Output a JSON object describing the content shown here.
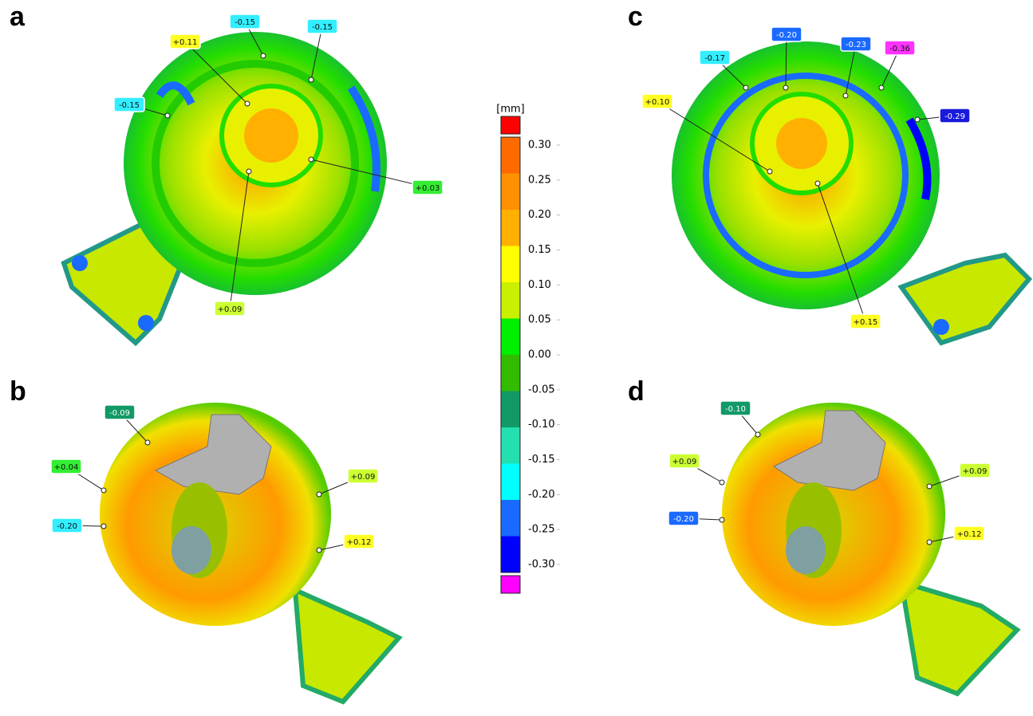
{
  "panels": [
    {
      "letter": "a",
      "callouts": [
        {
          "text": "-0.15",
          "color": "#33eeff"
        },
        {
          "text": "-0.15",
          "color": "#33eeff"
        },
        {
          "text": "+0.11",
          "color": "#ffff22"
        },
        {
          "text": "-0.15",
          "color": "#33eeff"
        },
        {
          "text": "+0.03",
          "color": "#33ee33"
        },
        {
          "text": "+0.09",
          "color": "#ccff33"
        }
      ]
    },
    {
      "letter": "b",
      "callouts": [
        {
          "text": "-0.09",
          "color": "#119966"
        },
        {
          "text": "+0.04",
          "color": "#33ee33"
        },
        {
          "text": "-0.20",
          "color": "#33eeff"
        },
        {
          "text": "+0.09",
          "color": "#ccff33"
        },
        {
          "text": "+0.12",
          "color": "#ffff22"
        }
      ]
    },
    {
      "letter": "c",
      "callouts": [
        {
          "text": "-0.20",
          "color": "#1a6aff"
        },
        {
          "text": "-0.23",
          "color": "#1a6aff"
        },
        {
          "text": "-0.36",
          "color": "#ff33ff"
        },
        {
          "text": "-0.17",
          "color": "#33eeff"
        },
        {
          "text": "+0.10",
          "color": "#ffff22"
        },
        {
          "text": "-0.29",
          "color": "#1a1adb"
        },
        {
          "text": "+0.15",
          "color": "#ffff22"
        }
      ]
    },
    {
      "letter": "d",
      "callouts": [
        {
          "text": "-0.10",
          "color": "#119966"
        },
        {
          "text": "+0.09",
          "color": "#ccff33"
        },
        {
          "text": "-0.20",
          "color": "#1a6aff"
        },
        {
          "text": "+0.09",
          "color": "#ccff33"
        },
        {
          "text": "+0.12",
          "color": "#ffff22"
        }
      ]
    }
  ],
  "scale": {
    "unit": "[mm]",
    "top_color": "#ff0000",
    "bottom_color": "#ff00ff",
    "ticks": [
      "0.30",
      "0.25",
      "0.20",
      "0.15",
      "0.10",
      "0.05",
      "0.00",
      "-0.05",
      "-0.10",
      "-0.15",
      "-0.20",
      "-0.25",
      "-0.30"
    ],
    "colors": [
      "#ff6a00",
      "#ff9000",
      "#ffb000",
      "#ffff00",
      "#c8f000",
      "#00ee00",
      "#33bb00",
      "#119966",
      "#22e0b0",
      "#00ffff",
      "#1a6aff",
      "#0000ff"
    ]
  }
}
